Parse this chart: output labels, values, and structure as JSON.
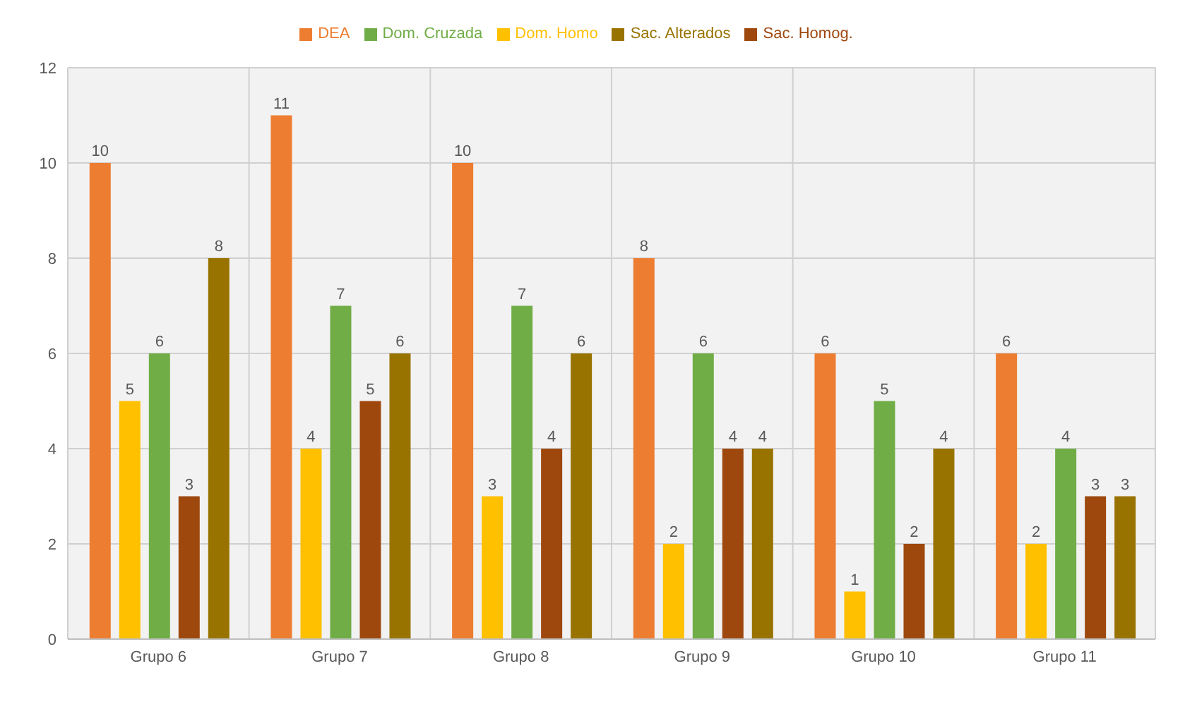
{
  "chart_data": {
    "type": "bar",
    "categories": [
      "Grupo 6",
      "Grupo 7",
      "Grupo 8",
      "Grupo 9",
      "Grupo 10",
      "Grupo 11"
    ],
    "series": [
      {
        "name": "DEA",
        "color": "#ed7d31",
        "values": [
          10,
          11,
          10,
          8,
          6,
          6
        ]
      },
      {
        "name": "Dom. Homo",
        "color": "#ffc000",
        "values": [
          5,
          4,
          3,
          2,
          1,
          2
        ]
      },
      {
        "name": "Dom. Cruzada",
        "color": "#70ad47",
        "values": [
          6,
          7,
          7,
          6,
          5,
          4
        ]
      },
      {
        "name": "Sac. Homog.",
        "color": "#9e480e",
        "values": [
          3,
          5,
          4,
          4,
          2,
          3
        ]
      },
      {
        "name": "Sac. Alterados",
        "color": "#997300",
        "values": [
          8,
          6,
          6,
          4,
          4,
          3
        ]
      }
    ],
    "ylim": [
      0,
      12
    ],
    "yticks": [
      0,
      2,
      4,
      6,
      8,
      10,
      12
    ],
    "grid": true,
    "legend": "top",
    "data_labels": true
  }
}
